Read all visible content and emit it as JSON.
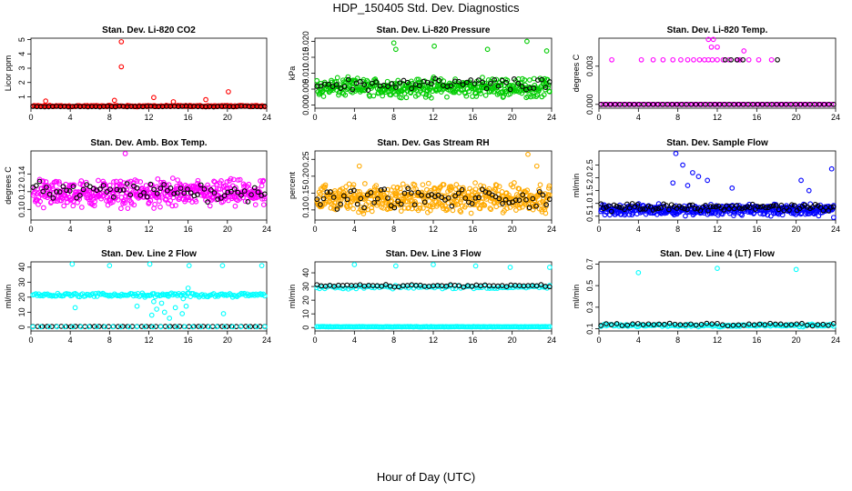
{
  "figure": {
    "title": "HDP_150405  Std. Dev. Diagnostics",
    "xlabel": "Hour of Day (UTC)"
  },
  "chart_data": [
    {
      "type": "scatter",
      "title": "Stan. Dev. Li-820 CO2",
      "ylabel": "Licor ppm",
      "xlim": [
        0,
        24
      ],
      "ylim": [
        0.2,
        5.1
      ],
      "xticks": [
        0,
        4,
        8,
        12,
        16,
        20,
        24
      ],
      "yticks": [
        1,
        2,
        3,
        4,
        5
      ],
      "ytick_labels": [
        "1",
        "2",
        "3",
        "4",
        "5"
      ],
      "series": [
        {
          "color": "#ff0000",
          "base": 0.35,
          "spread": 0.06,
          "n": 180,
          "outliers": [
            [
              9.2,
              4.85
            ],
            [
              9.2,
              3.1
            ],
            [
              12.5,
              0.95
            ],
            [
              8.5,
              0.75
            ],
            [
              1.5,
              0.7
            ],
            [
              17.8,
              0.8
            ],
            [
              20.1,
              1.35
            ],
            [
              14.5,
              0.65
            ]
          ]
        },
        {
          "color": "#000000",
          "base": 0.32,
          "spread": 0.03,
          "n": 60,
          "outliers": []
        }
      ]
    },
    {
      "type": "scatter",
      "title": "Stan. Dev. Li-820 Pressure",
      "ylabel": "kPa",
      "xlim": [
        0,
        24
      ],
      "ylim": [
        -0.001,
        0.021
      ],
      "xticks": [
        0,
        4,
        8,
        12,
        16,
        20,
        24
      ],
      "yticks": [
        0.0,
        0.005,
        0.01,
        0.015,
        0.02
      ],
      "ytick_labels": [
        "0.000",
        "0.005",
        "0.010",
        "0.015",
        "0.020"
      ],
      "series": [
        {
          "color": "#00cc00",
          "base": 0.0055,
          "spread": 0.0035,
          "n": 420,
          "outliers": [
            [
              8.0,
              0.0195
            ],
            [
              8.2,
              0.0175
            ],
            [
              21.5,
              0.02
            ],
            [
              12.1,
              0.0185
            ],
            [
              17.5,
              0.0175
            ],
            [
              23.5,
              0.017
            ]
          ]
        },
        {
          "color": "#000000",
          "base": 0.0065,
          "spread": 0.0025,
          "n": 60,
          "outliers": []
        }
      ]
    },
    {
      "type": "scatter",
      "title": "Stan. Dev. Li-820 Temp.",
      "ylabel": "degrees C",
      "xlim": [
        0,
        24
      ],
      "ylim": [
        -0.0003,
        0.0052
      ],
      "xticks": [
        0,
        4,
        8,
        12,
        16,
        20,
        24
      ],
      "yticks": [
        0.0,
        0.003
      ],
      "ytick_labels": [
        "0.000",
        "0.003"
      ],
      "series": [
        {
          "color": "#ff00ff",
          "base": 0.0,
          "spread": 0.0,
          "n": 110,
          "outliers": [
            [
              1.3,
              0.0035
            ],
            [
              4.3,
              0.0035
            ],
            [
              5.5,
              0.0035
            ],
            [
              6.5,
              0.0035
            ],
            [
              7.5,
              0.0035
            ],
            [
              8.3,
              0.0035
            ],
            [
              9.0,
              0.0035
            ],
            [
              9.6,
              0.0035
            ],
            [
              10.2,
              0.0035
            ],
            [
              10.7,
              0.0035
            ],
            [
              11.1,
              0.0035
            ],
            [
              11.5,
              0.0035
            ],
            [
              12.0,
              0.0035
            ],
            [
              12.6,
              0.0035
            ],
            [
              13.2,
              0.0035
            ],
            [
              14.3,
              0.0035
            ],
            [
              15.2,
              0.0035
            ],
            [
              16.2,
              0.0035
            ],
            [
              17.5,
              0.0035
            ],
            [
              11.1,
              0.0051
            ],
            [
              11.6,
              0.0051
            ],
            [
              11.4,
              0.0045
            ],
            [
              14.7,
              0.0042
            ],
            [
              12.0,
              0.0045
            ],
            [
              14.1,
              0.0035
            ]
          ]
        },
        {
          "color": "#000000",
          "base": 0.0,
          "spread": 0.0,
          "n": 50,
          "outliers": [
            [
              12.8,
              0.0035
            ],
            [
              13.4,
              0.0035
            ],
            [
              14.0,
              0.0035
            ],
            [
              14.6,
              0.0035
            ],
            [
              18.1,
              0.0035
            ]
          ]
        }
      ]
    },
    {
      "type": "scatter",
      "title": "Stan. Dev. Amb. Box Temp.",
      "ylabel": "degrees C",
      "xlim": [
        0,
        24
      ],
      "ylim": [
        0.088,
        0.166
      ],
      "xticks": [
        0,
        4,
        8,
        12,
        16,
        20,
        24
      ],
      "yticks": [
        0.1,
        0.12,
        0.14
      ],
      "ytick_labels": [
        "0.10",
        "0.12",
        "0.14"
      ],
      "series": [
        {
          "color": "#ff00ff",
          "base": 0.118,
          "spread": 0.018,
          "n": 480,
          "outliers": [
            [
              9.6,
              0.163
            ]
          ]
        },
        {
          "color": "#000000",
          "base": 0.12,
          "spread": 0.013,
          "n": 70,
          "outliers": []
        }
      ]
    },
    {
      "type": "scatter",
      "title": "Stan. Dev. Gas Stream RH",
      "ylabel": "percent",
      "xlim": [
        0,
        24
      ],
      "ylim": [
        0.07,
        0.275
      ],
      "xticks": [
        0,
        4,
        8,
        12,
        16,
        20,
        24
      ],
      "yticks": [
        0.1,
        0.15,
        0.2,
        0.25
      ],
      "ytick_labels": [
        "0.10",
        "0.15",
        "0.20",
        "0.25"
      ],
      "series": [
        {
          "color": "#ffaa00",
          "base": 0.135,
          "spread": 0.05,
          "n": 520,
          "outliers": [
            [
              4.5,
              0.23
            ],
            [
              21.6,
              0.265
            ],
            [
              22.5,
              0.23
            ]
          ]
        },
        {
          "color": "#000000",
          "base": 0.135,
          "spread": 0.035,
          "n": 70,
          "outliers": []
        }
      ]
    },
    {
      "type": "scatter",
      "title": "Stan. Dev. Sample Flow",
      "ylabel": "ml/min",
      "xlim": [
        0,
        24
      ],
      "ylim": [
        0.35,
        3.05
      ],
      "xticks": [
        0,
        4,
        8,
        12,
        16,
        20,
        24
      ],
      "yticks": [
        0.5,
        1.0,
        1.5,
        2.0,
        2.5
      ],
      "ytick_labels": [
        "0.5",
        "1.0",
        "1.5",
        "2.0",
        "2.5"
      ],
      "series": [
        {
          "color": "#0000ff",
          "base": 0.75,
          "spread": 0.25,
          "n": 420,
          "outliers": [
            [
              7.8,
              2.95
            ],
            [
              9.5,
              2.2
            ],
            [
              10.1,
              2.05
            ],
            [
              8.5,
              2.5
            ],
            [
              11.0,
              1.9
            ],
            [
              13.5,
              1.6
            ],
            [
              20.5,
              1.9
            ],
            [
              23.6,
              2.35
            ],
            [
              21.3,
              1.5
            ],
            [
              23.8,
              0.45
            ],
            [
              7.5,
              1.8
            ],
            [
              9.0,
              1.7
            ]
          ]
        },
        {
          "color": "#000000",
          "base": 0.85,
          "spread": 0.18,
          "n": 90,
          "outliers": []
        }
      ]
    },
    {
      "type": "scatter",
      "title": "Stan. Dev. Line 2 Flow",
      "ylabel": "ml/min",
      "xlim": [
        0,
        24
      ],
      "ylim": [
        -2.5,
        43.5
      ],
      "xticks": [
        0,
        4,
        8,
        12,
        16,
        20,
        24
      ],
      "yticks": [
        0,
        10,
        20,
        30,
        40
      ],
      "ytick_labels": [
        "0",
        "10",
        "20",
        "30",
        "40"
      ],
      "series": [
        {
          "color": "#00ffff",
          "base": 21.5,
          "spread": 1.5,
          "n": 160,
          "outliers": [
            [
              4.2,
              42
            ],
            [
              8.0,
              41
            ],
            [
              12.1,
              42
            ],
            [
              16.1,
              41
            ],
            [
              19.5,
              41
            ],
            [
              23.5,
              41
            ],
            [
              12.3,
              8
            ],
            [
              12.8,
              12
            ],
            [
              13.3,
              16
            ],
            [
              13.6,
              10
            ],
            [
              14.1,
              6
            ],
            [
              14.7,
              13
            ],
            [
              15.4,
              9
            ],
            [
              15.8,
              14
            ],
            [
              16.0,
              26
            ],
            [
              10.8,
              14
            ],
            [
              11.6,
              20
            ],
            [
              12.5,
              17
            ],
            [
              13.9,
              21
            ],
            [
              19.6,
              9
            ],
            [
              4.5,
              13
            ],
            [
              15.5,
              19
            ]
          ]
        },
        {
          "color": "#000000",
          "base": 0.5,
          "spread": 0.1,
          "n": 50,
          "outliers": []
        },
        {
          "color": "#00ffff",
          "base": 0.3,
          "spread": 0.05,
          "n": 30,
          "outliers": []
        }
      ]
    },
    {
      "type": "scatter",
      "title": "Stan. Dev. Line 3 Flow",
      "ylabel": "ml/min",
      "xlim": [
        0,
        24
      ],
      "ylim": [
        -2.5,
        48
      ],
      "xticks": [
        0,
        4,
        8,
        12,
        16,
        20,
        24
      ],
      "yticks": [
        0,
        10,
        20,
        30,
        40
      ],
      "ytick_labels": [
        "0",
        "10",
        "20",
        "30",
        "40"
      ],
      "series": [
        {
          "color": "#00ffff",
          "base": 29.5,
          "spread": 1.5,
          "n": 90,
          "outliers": [
            [
              4.0,
              46
            ],
            [
              8.2,
              45
            ],
            [
              12.0,
              46
            ],
            [
              16.3,
              45
            ],
            [
              19.8,
              44
            ],
            [
              23.8,
              44
            ]
          ]
        },
        {
          "color": "#000000",
          "base": 30.5,
          "spread": 1.0,
          "n": 55,
          "outliers": []
        },
        {
          "color": "#00ffff",
          "base": 0.6,
          "spread": 0.2,
          "n": 160,
          "outliers": []
        }
      ]
    },
    {
      "type": "scatter",
      "title": "Stan. Dev. Line 4 (LT) Flow",
      "ylabel": "ml/min",
      "xlim": [
        0,
        24
      ],
      "ylim": [
        0.08,
        0.72
      ],
      "xticks": [
        0,
        4,
        8,
        12,
        16,
        20,
        24
      ],
      "yticks": [
        0.1,
        0.3,
        0.5,
        0.7
      ],
      "ytick_labels": [
        "0.1",
        "0.3",
        "0.5",
        "0.7"
      ],
      "series": [
        {
          "color": "#00ffff",
          "base": 0.13,
          "spread": 0.015,
          "n": 130,
          "outliers": [
            [
              4.0,
              0.62
            ],
            [
              12.0,
              0.66
            ],
            [
              20.0,
              0.65
            ]
          ]
        },
        {
          "color": "#000000",
          "base": 0.14,
          "spread": 0.015,
          "n": 45,
          "outliers": []
        }
      ]
    }
  ]
}
